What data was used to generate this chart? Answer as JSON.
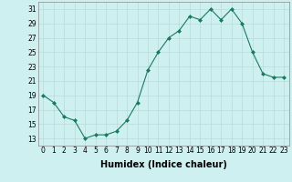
{
  "x": [
    0,
    1,
    2,
    3,
    4,
    5,
    6,
    7,
    8,
    9,
    10,
    11,
    12,
    13,
    14,
    15,
    16,
    17,
    18,
    19,
    20,
    21,
    22,
    23
  ],
  "y": [
    19,
    18,
    16,
    15.5,
    13,
    13.5,
    13.5,
    14,
    15.5,
    18,
    22.5,
    25,
    27,
    28,
    30,
    29.5,
    31,
    29.5,
    31,
    29,
    25,
    22,
    21.5,
    21.5
  ],
  "xlabel": "Humidex (Indice chaleur)",
  "ylabel": "",
  "ylim": [
    12,
    32
  ],
  "xlim": [
    -0.5,
    23.5
  ],
  "yticks": [
    13,
    15,
    17,
    19,
    21,
    23,
    25,
    27,
    29,
    31
  ],
  "xticks": [
    0,
    1,
    2,
    3,
    4,
    5,
    6,
    7,
    8,
    9,
    10,
    11,
    12,
    13,
    14,
    15,
    16,
    17,
    18,
    19,
    20,
    21,
    22,
    23
  ],
  "xtick_labels": [
    "0",
    "1",
    "2",
    "3",
    "4",
    "5",
    "6",
    "7",
    "8",
    "9",
    "10",
    "11",
    "12",
    "13",
    "14",
    "15",
    "16",
    "17",
    "18",
    "19",
    "20",
    "21",
    "22",
    "23"
  ],
  "line_color": "#1a7a5e",
  "marker_color": "#1a7a5e",
  "bg_color": "#cff0f0",
  "grid_color": "#b8dada",
  "label_fontsize": 7,
  "tick_fontsize": 5.5
}
